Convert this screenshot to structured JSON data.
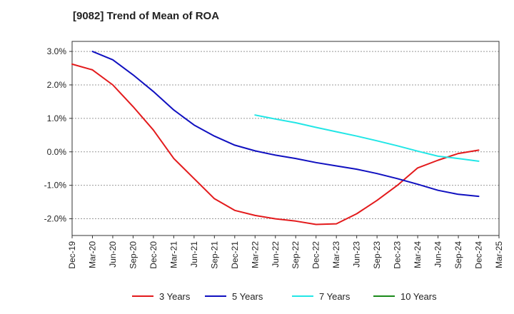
{
  "chart_data": {
    "type": "line",
    "title": "[9082]  Trend of Mean of ROA",
    "xlabel": "",
    "ylabel": "",
    "ylim": [
      -2.5,
      3.3
    ],
    "yticks": [
      3.0,
      2.0,
      1.0,
      0.0,
      -1.0,
      -2.0
    ],
    "ytick_labels": [
      "3.0%",
      "2.0%",
      "1.0%",
      "0.0%",
      "-1.0%",
      "-2.0%"
    ],
    "categories": [
      "Dec-19",
      "Mar-20",
      "Jun-20",
      "Sep-20",
      "Dec-20",
      "Mar-21",
      "Jun-21",
      "Sep-21",
      "Dec-21",
      "Mar-22",
      "Jun-22",
      "Sep-22",
      "Dec-22",
      "Mar-23",
      "Jun-23",
      "Sep-23",
      "Dec-23",
      "Mar-24",
      "Jun-24",
      "Sep-24",
      "Dec-24",
      "Mar-25"
    ],
    "grid": true,
    "legend_position": "bottom",
    "series": [
      {
        "name": "3 Years",
        "color": "#e31a1c",
        "values": [
          2.62,
          2.45,
          2.0,
          1.35,
          0.65,
          -0.2,
          -0.8,
          -1.4,
          -1.75,
          -1.9,
          -2.0,
          -2.07,
          -2.17,
          -2.15,
          -1.85,
          -1.45,
          -1.0,
          -0.48,
          -0.25,
          -0.05,
          0.05,
          null
        ]
      },
      {
        "name": "5 Years",
        "color": "#1010c0",
        "values": [
          null,
          3.0,
          2.75,
          2.3,
          1.8,
          1.25,
          0.8,
          0.47,
          0.2,
          0.03,
          -0.1,
          -0.2,
          -0.32,
          -0.42,
          -0.52,
          -0.65,
          -0.8,
          -0.97,
          -1.15,
          -1.27,
          -1.33,
          null
        ]
      },
      {
        "name": "7 Years",
        "color": "#22e6e6",
        "values": [
          null,
          null,
          null,
          null,
          null,
          null,
          null,
          null,
          null,
          1.1,
          0.98,
          0.87,
          0.73,
          0.6,
          0.47,
          0.33,
          0.18,
          0.02,
          -0.13,
          -0.2,
          -0.28,
          null
        ]
      },
      {
        "name": "10 Years",
        "color": "#1a8a1a",
        "values": [
          null,
          null,
          null,
          null,
          null,
          null,
          null,
          null,
          null,
          null,
          null,
          null,
          null,
          null,
          null,
          null,
          null,
          null,
          null,
          null,
          null,
          null
        ]
      }
    ]
  }
}
